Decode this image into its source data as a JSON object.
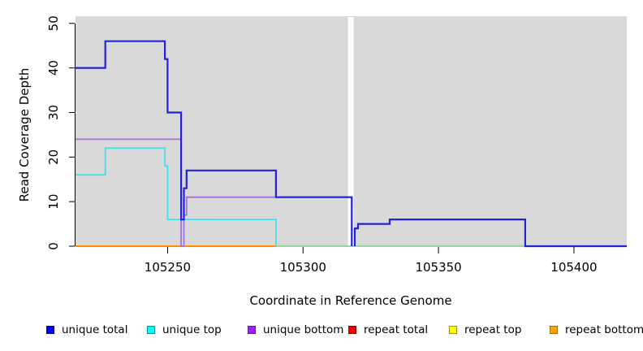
{
  "chart_data": {
    "type": "line",
    "title": "",
    "xlabel": "Coordinate in Reference Genome",
    "ylabel": "Read Coverage Depth",
    "xlim": [
      105216,
      105419.5
    ],
    "ylim": [
      0,
      51.6
    ],
    "xticks": [
      105250,
      105300,
      105350,
      105400
    ],
    "yticks": [
      0,
      10,
      20,
      30,
      40,
      50
    ],
    "plot_bg": "#d9d9d9",
    "gap_band": {
      "x0": 105316.6,
      "x1": 105318.7,
      "color": "#ffffff"
    },
    "legend_position": "bottom",
    "grid": false,
    "legend": [
      {
        "label": "unique total",
        "fill": "#0000ee",
        "border": "#00009a"
      },
      {
        "label": "unique top",
        "fill": "#00ffff",
        "border": "#009a9a"
      },
      {
        "label": "unique bottom",
        "fill": "#a020f0",
        "border": "#6a14a0"
      },
      {
        "label": "repeat total",
        "fill": "#ee0000",
        "border": "#9a0000"
      },
      {
        "label": "repeat top",
        "fill": "#ffff00",
        "border": "#9a9a00"
      },
      {
        "label": "repeat bottom",
        "fill": "#ffa500",
        "border": "#b36b00"
      }
    ],
    "series": [
      {
        "name": "zero-baseline",
        "color": "#7ccd7c",
        "width": 1.4,
        "segments": [
          [
            [
              105290,
              0
            ],
            [
              105419.5,
              0
            ]
          ]
        ]
      },
      {
        "name": "repeat bottom",
        "color": "#ff8c00",
        "width": 2,
        "segments": [
          [
            [
              105216,
              0
            ],
            [
              105290,
              0
            ]
          ]
        ]
      },
      {
        "name": "unique top",
        "color": "#45dfe6",
        "width": 1.8,
        "segments": [
          [
            [
              105216,
              16
            ],
            [
              105227,
              16
            ],
            [
              105227,
              22
            ],
            [
              105249,
              22
            ],
            [
              105249,
              18
            ],
            [
              105250,
              18
            ],
            [
              105250,
              6
            ],
            [
              105290,
              6
            ],
            [
              105290,
              0
            ]
          ]
        ]
      },
      {
        "name": "unique bottom",
        "color": "#a96fe0",
        "width": 1.8,
        "segments": [
          [
            [
              105216,
              24
            ],
            [
              105255,
              24
            ],
            [
              105255,
              0
            ],
            [
              105256,
              0
            ],
            [
              105256,
              7
            ],
            [
              105257,
              7
            ],
            [
              105257,
              11
            ],
            [
              105318,
              11
            ],
            [
              105318,
              0
            ]
          ],
          [
            [
              105319.1,
              0
            ],
            [
              105319.1,
              4
            ],
            [
              105320.3,
              4
            ],
            [
              105320.3,
              5
            ],
            [
              105332,
              5
            ],
            [
              105332,
              6
            ],
            [
              105382,
              6
            ],
            [
              105382,
              0
            ],
            [
              105419.5,
              0
            ]
          ]
        ]
      },
      {
        "name": "unique total",
        "color": "#2222dd",
        "width": 2.2,
        "segments": [
          [
            [
              105216,
              40
            ],
            [
              105227,
              40
            ],
            [
              105227,
              46
            ],
            [
              105249,
              46
            ],
            [
              105249,
              42
            ],
            [
              105250,
              42
            ],
            [
              105250,
              30
            ],
            [
              105255,
              30
            ],
            [
              105255,
              6
            ],
            [
              105256,
              6
            ],
            [
              105256,
              13
            ],
            [
              105257,
              13
            ],
            [
              105257,
              17
            ],
            [
              105290,
              17
            ],
            [
              105290,
              11
            ],
            [
              105318,
              11
            ],
            [
              105318,
              0
            ]
          ],
          [
            [
              105319.1,
              0
            ],
            [
              105319.1,
              4
            ],
            [
              105320.3,
              4
            ],
            [
              105320.3,
              5
            ],
            [
              105332,
              5
            ],
            [
              105332,
              6
            ],
            [
              105382,
              6
            ],
            [
              105382,
              0
            ],
            [
              105419.5,
              0
            ]
          ]
        ]
      }
    ]
  }
}
